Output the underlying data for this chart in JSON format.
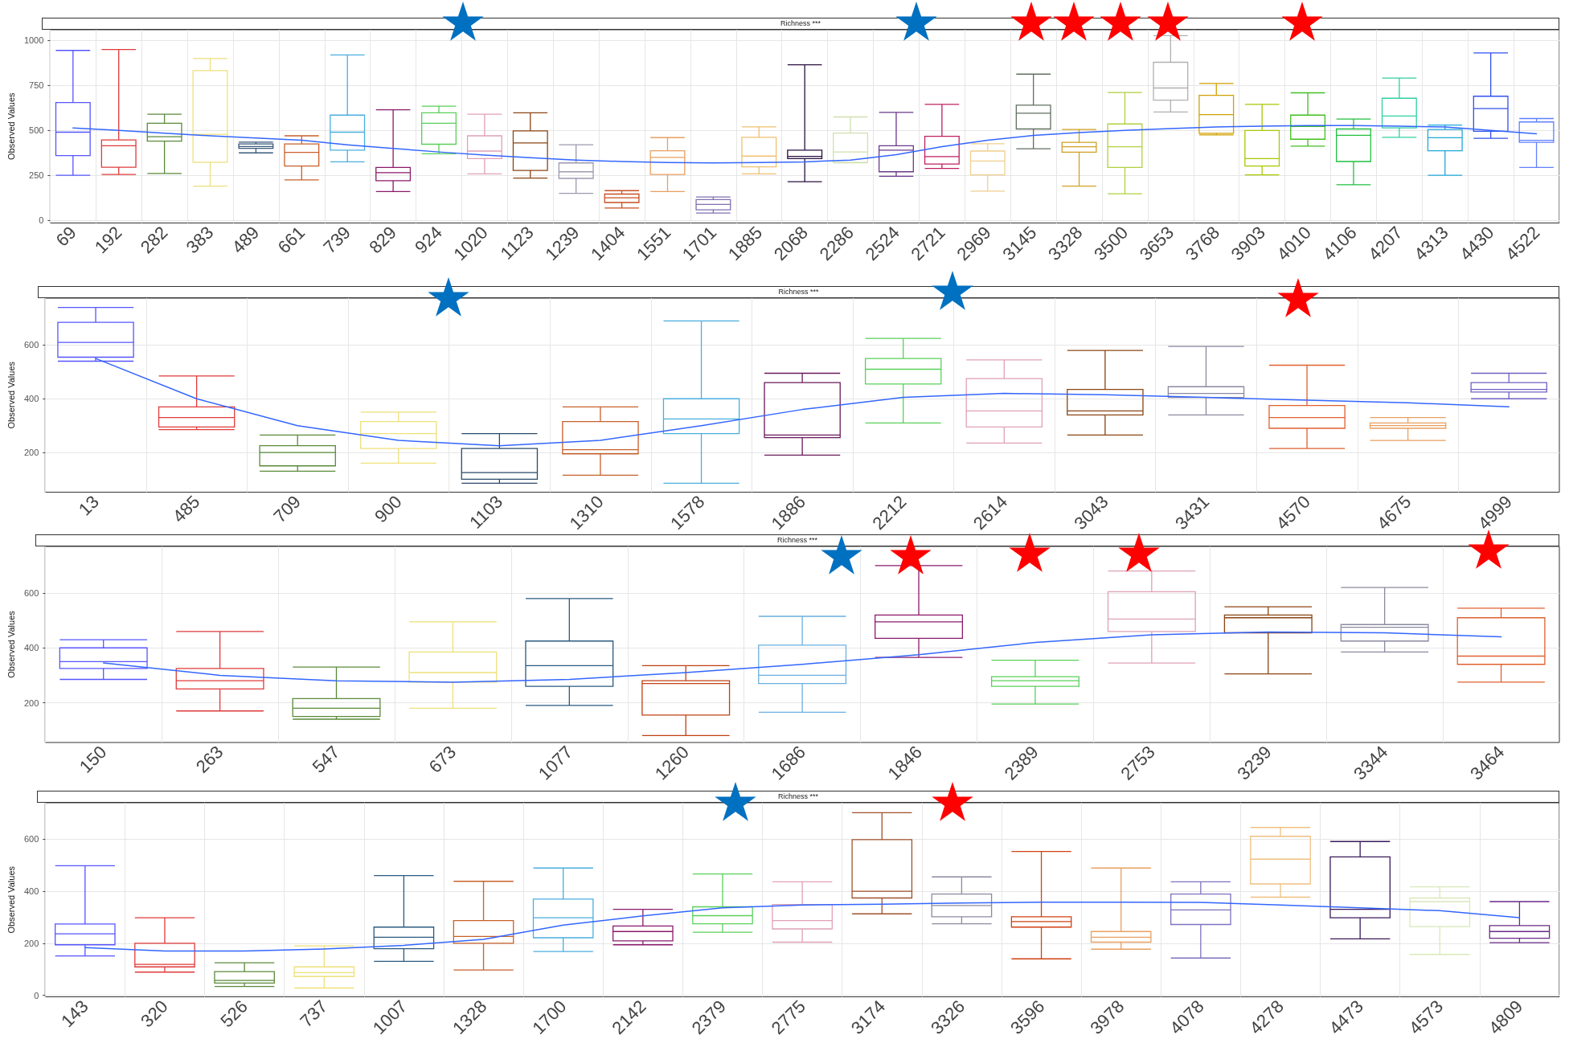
{
  "chart_data": [
    {
      "type": "box",
      "title": "Richness ***",
      "ylabel": "Observed Values",
      "grid": true,
      "ylim": [
        -15,
        1060
      ],
      "yticks": [
        0,
        250,
        500,
        750,
        1000
      ],
      "categories": [
        "69",
        "192",
        "282",
        "383",
        "489",
        "661",
        "739",
        "829",
        "924",
        "1020",
        "1123",
        "1239",
        "1404",
        "1551",
        "1701",
        "1885",
        "2068",
        "2286",
        "2524",
        "2721",
        "2969",
        "3145",
        "3328",
        "3500",
        "3653",
        "3768",
        "3903",
        "4010",
        "4106",
        "4207",
        "4313",
        "4430",
        "4522"
      ],
      "series": [
        {
          "type": "box",
          "colors": [
            "#5555ff",
            "#e03a3a",
            "#5a8a3a",
            "#eee07a",
            "#3a5a7a",
            "#c8602a",
            "#4aaee0",
            "#8b1a6b",
            "#5ad05a",
            "#e0a0b8",
            "#8b4513",
            "#9a9ab0",
            "#c85020",
            "#e8a060",
            "#8070b0",
            "#f0c070",
            "#2a1040",
            "#d0e0b0",
            "#6a3a8a",
            "#c02060",
            "#f0d090",
            "#607060",
            "#d0a020",
            "#b0d040",
            "#b0b0b0",
            "#d0a000",
            "#a8c800",
            "#40c020",
            "#20c040",
            "#30d0a0",
            "#20a8d8",
            "#3050f0",
            "#6080ff"
          ],
          "boxes": [
            {
              "low": 250,
              "q1": 360,
              "median": 490,
              "q3": 655,
              "high": 945
            },
            {
              "low": 255,
              "q1": 295,
              "median": 415,
              "q3": 447,
              "high": 950
            },
            {
              "low": 260,
              "q1": 440,
              "median": 465,
              "q3": 540,
              "high": 590
            },
            {
              "low": 190,
              "q1": 323,
              "median": 478,
              "q3": 833,
              "high": 900
            },
            {
              "low": 375,
              "q1": 400,
              "median": 410,
              "q3": 425,
              "high": 435
            },
            {
              "low": 225,
              "q1": 302,
              "median": 378,
              "q3": 425,
              "high": 470
            },
            {
              "low": 325,
              "q1": 390,
              "median": 490,
              "q3": 585,
              "high": 920
            },
            {
              "low": 160,
              "q1": 220,
              "median": 265,
              "q3": 294,
              "high": 615
            },
            {
              "low": 370,
              "q1": 423,
              "median": 540,
              "q3": 598,
              "high": 635
            },
            {
              "low": 258,
              "q1": 343,
              "median": 385,
              "q3": 470,
              "high": 590
            },
            {
              "low": 235,
              "q1": 277,
              "median": 430,
              "q3": 497,
              "high": 598
            },
            {
              "low": 150,
              "q1": 233,
              "median": 270,
              "q3": 319,
              "high": 420
            },
            {
              "low": 68,
              "q1": 99,
              "median": 125,
              "q3": 146,
              "high": 165
            },
            {
              "low": 160,
              "q1": 255,
              "median": 350,
              "q3": 387,
              "high": 460
            },
            {
              "low": 40,
              "q1": 58,
              "median": 88,
              "q3": 115,
              "high": 130
            },
            {
              "low": 258,
              "q1": 297,
              "median": 357,
              "q3": 462,
              "high": 520
            },
            {
              "low": 215,
              "q1": 343,
              "median": 355,
              "q3": 390,
              "high": 865
            },
            {
              "low": 320,
              "q1": 322,
              "median": 380,
              "q3": 485,
              "high": 575
            },
            {
              "low": 245,
              "q1": 270,
              "median": 390,
              "q3": 415,
              "high": 600
            },
            {
              "low": 288,
              "q1": 313,
              "median": 354,
              "q3": 467,
              "high": 645
            },
            {
              "low": 162,
              "q1": 253,
              "median": 330,
              "q3": 385,
              "high": 426
            },
            {
              "low": 398,
              "q1": 508,
              "median": 596,
              "q3": 640,
              "high": 813
            },
            {
              "low": 190,
              "q1": 379,
              "median": 409,
              "q3": 434,
              "high": 505
            },
            {
              "low": 148,
              "q1": 294,
              "median": 409,
              "q3": 536,
              "high": 711
            },
            {
              "low": 602,
              "q1": 668,
              "median": 736,
              "q3": 879,
              "high": 1027
            },
            {
              "low": 475,
              "q1": 484,
              "median": 588,
              "q3": 695,
              "high": 761
            },
            {
              "low": 253,
              "q1": 302,
              "median": 343,
              "q3": 500,
              "high": 645
            },
            {
              "low": 412,
              "q1": 451,
              "median": 522,
              "q3": 585,
              "high": 709
            },
            {
              "low": 198,
              "q1": 327,
              "median": 473,
              "q3": 508,
              "high": 563
            },
            {
              "low": 462,
              "q1": 514,
              "median": 580,
              "q3": 679,
              "high": 791
            },
            {
              "low": 250,
              "q1": 387,
              "median": 459,
              "q3": 505,
              "high": 530
            },
            {
              "low": 456,
              "q1": 495,
              "median": 621,
              "q3": 690,
              "high": 931
            },
            {
              "low": 294,
              "q1": 434,
              "median": 445,
              "q3": 547,
              "high": 566
            }
          ]
        },
        {
          "type": "line",
          "color": "#3366ff",
          "marker": "none",
          "values": [
            514,
            500,
            485,
            470,
            458,
            445,
            420,
            400,
            380,
            363,
            348,
            335,
            327,
            321,
            319,
            321,
            325,
            335,
            365,
            410,
            445,
            472,
            488,
            500,
            510,
            519,
            524,
            527,
            527,
            524,
            519,
            500,
            481
          ]
        }
      ]
    },
    {
      "type": "box",
      "title": "Richness ***",
      "ylabel": "Observed Values",
      "grid": true,
      "ylim": [
        52,
        775
      ],
      "yticks": [
        200,
        400,
        600
      ],
      "categories": [
        "13",
        "485",
        "709",
        "900",
        "1103",
        "1310",
        "1578",
        "1886",
        "2212",
        "2614",
        "3043",
        "3431",
        "4570",
        "4675",
        "4999"
      ],
      "series": [
        {
          "type": "box",
          "colors": [
            "#5555ff",
            "#e03a3a",
            "#5a8a3a",
            "#eee07a",
            "#2a4a6a",
            "#c8602a",
            "#4aaee0",
            "#6a1a5a",
            "#5ad05a",
            "#e0a0b8",
            "#8b4513",
            "#8a8aa0",
            "#e06030",
            "#e8a060",
            "#7060c0"
          ],
          "boxes": [
            {
              "low": 540,
              "q1": 555,
              "median": 610,
              "q3": 685,
              "high": 740
            },
            {
              "low": 285,
              "q1": 295,
              "median": 330,
              "q3": 370,
              "high": 485
            },
            {
              "low": 130,
              "q1": 150,
              "median": 200,
              "q3": 225,
              "high": 265
            },
            {
              "low": 160,
              "q1": 215,
              "median": 270,
              "q3": 315,
              "high": 350
            },
            {
              "low": 85,
              "q1": 100,
              "median": 125,
              "q3": 215,
              "high": 270
            },
            {
              "low": 115,
              "q1": 195,
              "median": 210,
              "q3": 315,
              "high": 370
            },
            {
              "low": 85,
              "q1": 270,
              "median": 325,
              "q3": 400,
              "high": 690
            },
            {
              "low": 190,
              "q1": 255,
              "median": 265,
              "q3": 460,
              "high": 495
            },
            {
              "low": 310,
              "q1": 455,
              "median": 510,
              "q3": 550,
              "high": 625
            },
            {
              "low": 235,
              "q1": 295,
              "median": 355,
              "q3": 475,
              "high": 545
            },
            {
              "low": 265,
              "q1": 340,
              "median": 355,
              "q3": 435,
              "high": 580
            },
            {
              "low": 340,
              "q1": 405,
              "median": 420,
              "q3": 445,
              "high": 595
            },
            {
              "low": 215,
              "q1": 290,
              "median": 330,
              "q3": 375,
              "high": 525
            },
            {
              "low": 245,
              "q1": 290,
              "median": 300,
              "q3": 310,
              "high": 330
            },
            {
              "low": 400,
              "q1": 425,
              "median": 435,
              "q3": 460,
              "high": 495
            }
          ]
        },
        {
          "type": "line",
          "color": "#3366ff",
          "marker": "none",
          "values": [
            550,
            400,
            300,
            245,
            225,
            245,
            300,
            360,
            405,
            420,
            415,
            405,
            395,
            385,
            370
          ]
        }
      ]
    },
    {
      "type": "box",
      "title": "Richness ***",
      "ylabel": "Observed Values",
      "grid": true,
      "ylim": [
        55,
        770
      ],
      "yticks": [
        200,
        400,
        600
      ],
      "categories": [
        "150",
        "263",
        "547",
        "673",
        "1077",
        "1260",
        "1686",
        "1846",
        "2389",
        "2753",
        "3239",
        "3344",
        "3464"
      ],
      "series": [
        {
          "type": "box",
          "colors": [
            "#5555ff",
            "#e03a3a",
            "#5a8a3a",
            "#eee07a",
            "#2a5a80",
            "#c04010",
            "#6ab0e0",
            "#8b1a6b",
            "#5ad05a",
            "#e0a0b8",
            "#8b4513",
            "#8a8aa0",
            "#e06030"
          ],
          "boxes": [
            {
              "low": 285,
              "q1": 325,
              "median": 350,
              "q3": 400,
              "high": 430
            },
            {
              "low": 170,
              "q1": 250,
              "median": 280,
              "q3": 325,
              "high": 460
            },
            {
              "low": 140,
              "q1": 150,
              "median": 180,
              "q3": 215,
              "high": 330
            },
            {
              "low": 180,
              "q1": 275,
              "median": 310,
              "q3": 385,
              "high": 495
            },
            {
              "low": 190,
              "q1": 260,
              "median": 335,
              "q3": 425,
              "high": 580
            },
            {
              "low": 80,
              "q1": 155,
              "median": 270,
              "q3": 280,
              "high": 335
            },
            {
              "low": 165,
              "q1": 270,
              "median": 300,
              "q3": 410,
              "high": 515
            },
            {
              "low": 365,
              "q1": 435,
              "median": 495,
              "q3": 520,
              "high": 700
            },
            {
              "low": 195,
              "q1": 260,
              "median": 280,
              "q3": 295,
              "high": 355
            },
            {
              "low": 345,
              "q1": 460,
              "median": 505,
              "q3": 605,
              "high": 680
            },
            {
              "low": 305,
              "q1": 455,
              "median": 510,
              "q3": 520,
              "high": 550
            },
            {
              "low": 385,
              "q1": 425,
              "median": 475,
              "q3": 485,
              "high": 620
            },
            {
              "low": 275,
              "q1": 340,
              "median": 370,
              "q3": 510,
              "high": 545
            }
          ]
        },
        {
          "type": "line",
          "color": "#3366ff",
          "marker": "none",
          "values": [
            345,
            300,
            280,
            275,
            285,
            310,
            340,
            375,
            420,
            448,
            458,
            455,
            440
          ]
        }
      ]
    },
    {
      "type": "box",
      "title": "Richness ***",
      "ylabel": "Observed Values",
      "grid": true,
      "ylim": [
        -6,
        740
      ],
      "yticks": [
        0,
        200,
        400,
        600
      ],
      "categories": [
        "143",
        "320",
        "526",
        "737",
        "1007",
        "1328",
        "1700",
        "2142",
        "2379",
        "2775",
        "3174",
        "3326",
        "3596",
        "3978",
        "4078",
        "4278",
        "4473",
        "4573",
        "4809"
      ],
      "series": [
        {
          "type": "box",
          "colors": [
            "#5555ff",
            "#e03a3a",
            "#5a8a3a",
            "#eee07a",
            "#2a5a80",
            "#c8602a",
            "#4aaee0",
            "#8b1a6b",
            "#5ad05a",
            "#e0a0b8",
            "#a0522d",
            "#8a8aa0",
            "#d04010",
            "#e8a060",
            "#8070c0",
            "#f0c080",
            "#3a1a5a",
            "#d8e8b8",
            "#6a2a8a"
          ],
          "boxes": [
            {
              "low": 151,
              "q1": 194,
              "median": 236,
              "q3": 274,
              "high": 498
            },
            {
              "low": 89,
              "q1": 109,
              "median": 119,
              "q3": 200,
              "high": 298
            },
            {
              "low": 34,
              "q1": 47,
              "median": 57,
              "q3": 91,
              "high": 125
            },
            {
              "low": 28,
              "q1": 72,
              "median": 87,
              "q3": 109,
              "high": 190
            },
            {
              "low": 130,
              "q1": 179,
              "median": 223,
              "q3": 262,
              "high": 460
            },
            {
              "low": 97,
              "q1": 200,
              "median": 226,
              "q3": 287,
              "high": 438
            },
            {
              "low": 168,
              "q1": 221,
              "median": 298,
              "q3": 370,
              "high": 489
            },
            {
              "low": 194,
              "q1": 209,
              "median": 245,
              "q3": 266,
              "high": 330
            },
            {
              "low": 242,
              "q1": 275,
              "median": 306,
              "q3": 340,
              "high": 466
            },
            {
              "low": 204,
              "q1": 255,
              "median": 287,
              "q3": 349,
              "high": 436
            },
            {
              "low": 313,
              "q1": 374,
              "median": 400,
              "q3": 598,
              "high": 702
            },
            {
              "low": 275,
              "q1": 302,
              "median": 345,
              "q3": 389,
              "high": 455
            },
            {
              "low": 140,
              "q1": 262,
              "median": 283,
              "q3": 302,
              "high": 553
            },
            {
              "low": 177,
              "q1": 204,
              "median": 223,
              "q3": 245,
              "high": 489
            },
            {
              "low": 143,
              "q1": 272,
              "median": 328,
              "q3": 389,
              "high": 436
            },
            {
              "low": 377,
              "q1": 428,
              "median": 523,
              "q3": 611,
              "high": 645
            },
            {
              "low": 217,
              "q1": 298,
              "median": 330,
              "q3": 532,
              "high": 591
            },
            {
              "low": 157,
              "q1": 264,
              "median": 360,
              "q3": 374,
              "high": 417
            },
            {
              "low": 202,
              "q1": 219,
              "median": 245,
              "q3": 268,
              "high": 360
            }
          ]
        },
        {
          "type": "line",
          "color": "#3366ff",
          "marker": "none",
          "values": [
            183,
            170,
            170,
            178,
            192,
            215,
            270,
            305,
            336,
            347,
            350,
            355,
            358,
            358,
            357,
            347,
            336,
            325,
            298
          ]
        }
      ]
    }
  ]
}
